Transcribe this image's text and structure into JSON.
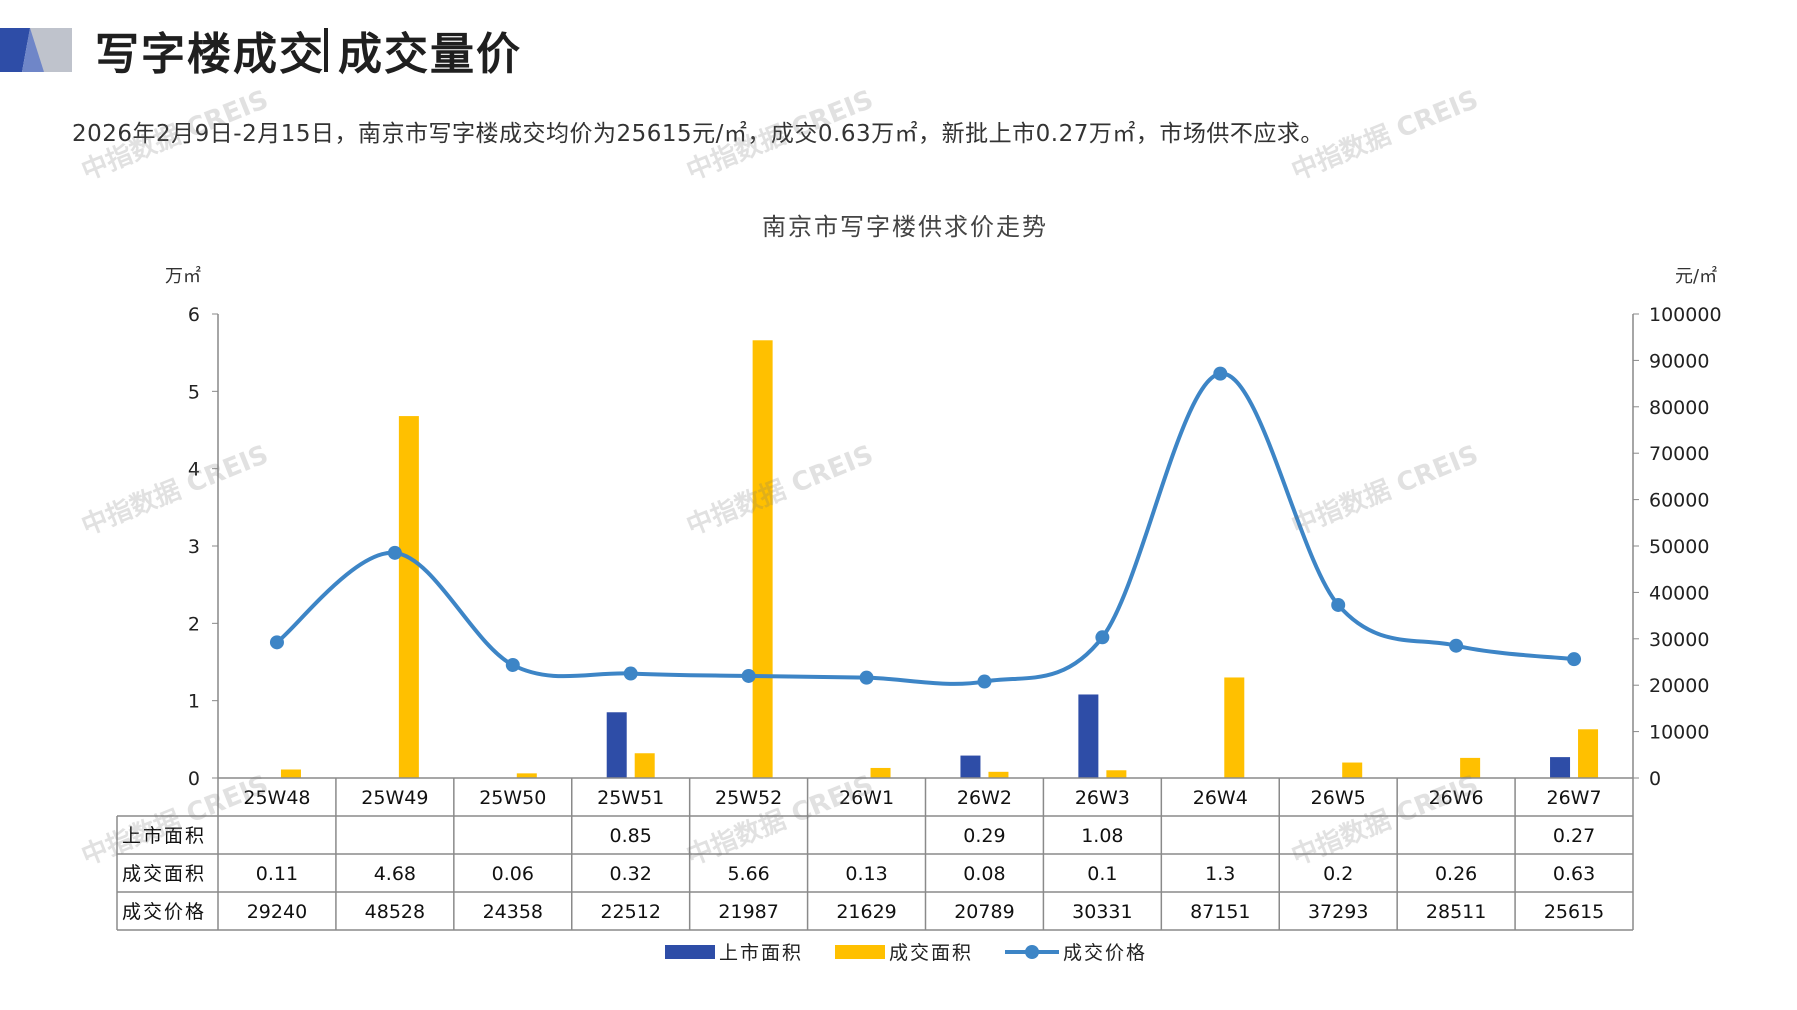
{
  "header": {
    "title_left": "写字楼成交",
    "title_right": "成交量价",
    "summary": "2026年2月9日-2月15日，南京市写字楼成交均价为25615元/㎡，成交0.63万㎡，新批上市0.27万㎡，市场供不应求。"
  },
  "watermark": "中指数据 CREIS",
  "colors": {
    "supply": "#2E4DA7",
    "deal_area": "#FFC000",
    "price": "#3D85C6",
    "logo_dark": "#2E4DA7",
    "logo_gray": "#BFC3CC"
  },
  "chart_data": {
    "type": "bar",
    "title": "南京市写字楼供求价走势",
    "y_left_unit": "万㎡",
    "y_right_unit": "元/㎡",
    "y_left_range": [
      0,
      6
    ],
    "y_left_ticks": [
      "0",
      "1",
      "2",
      "3",
      "4",
      "5",
      "6"
    ],
    "y_right_range": [
      0,
      100000
    ],
    "y_right_ticks": [
      "0",
      "10000",
      "20000",
      "30000",
      "40000",
      "50000",
      "60000",
      "70000",
      "80000",
      "90000",
      "100000"
    ],
    "categories": [
      "25W48",
      "25W49",
      "25W50",
      "25W51",
      "25W52",
      "26W1",
      "26W2",
      "26W3",
      "26W4",
      "26W5",
      "26W6",
      "26W7"
    ],
    "series": [
      {
        "name": "上市面积",
        "type": "bar",
        "axis": "left",
        "values": [
          null,
          null,
          null,
          0.85,
          null,
          null,
          0.29,
          1.08,
          null,
          null,
          null,
          0.27
        ],
        "labels": [
          "",
          "",
          "",
          "0.85",
          "",
          "",
          "0.29",
          "1.08",
          "",
          "",
          "",
          "0.27"
        ]
      },
      {
        "name": "成交面积",
        "type": "bar",
        "axis": "left",
        "values": [
          0.11,
          4.68,
          0.06,
          0.32,
          5.66,
          0.13,
          0.08,
          0.1,
          1.3,
          0.2,
          0.26,
          0.63
        ],
        "labels": [
          "0.11",
          "4.68",
          "0.06",
          "0.32",
          "5.66",
          "0.13",
          "0.08",
          "0.1",
          "1.3",
          "0.2",
          "0.26",
          "0.63"
        ]
      },
      {
        "name": "成交价格",
        "type": "line",
        "axis": "right",
        "values": [
          29240,
          48528,
          24358,
          22512,
          21987,
          21629,
          20789,
          30331,
          87151,
          37293,
          28511,
          25615
        ],
        "labels": [
          "29240",
          "48528",
          "24358",
          "22512",
          "21987",
          "21629",
          "20789",
          "30331",
          "87151",
          "37293",
          "28511",
          "25615"
        ]
      }
    ],
    "legend_placement": "bottom",
    "grid": false
  }
}
